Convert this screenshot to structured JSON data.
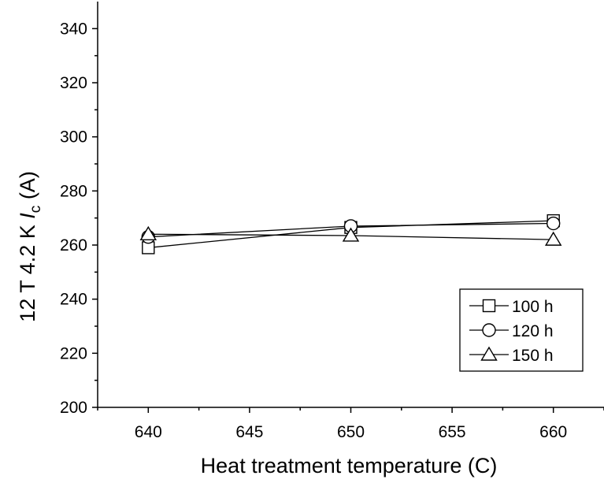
{
  "chart_data": {
    "type": "line",
    "title": "",
    "xlabel": "Heat treatment temperature (C)",
    "ylabel": {
      "prefix": "12 T 4.2 K ",
      "symbol": "I",
      "subscript": "c",
      "suffix": " (A)"
    },
    "xlim": [
      637.5,
      662.5
    ],
    "ylim": [
      200,
      350
    ],
    "xticks": [
      640,
      645,
      650,
      655,
      660
    ],
    "yticks": [
      200,
      220,
      240,
      260,
      280,
      300,
      320,
      340
    ],
    "grid": false,
    "legend_position": "bottom-right",
    "series": [
      {
        "name": "100 h",
        "marker": "square",
        "x": [
          640,
          650,
          660
        ],
        "y": [
          259,
          266.5,
          269
        ]
      },
      {
        "name": "120 h",
        "marker": "circle",
        "x": [
          640,
          650,
          660
        ],
        "y": [
          263,
          267,
          268
        ]
      },
      {
        "name": "150 h",
        "marker": "triangle",
        "x": [
          640,
          650,
          660
        ],
        "y": [
          264,
          263.5,
          262
        ]
      }
    ],
    "colors": {
      "line": "#000000",
      "marker_fill": "#ffffff",
      "background": "#ffffff"
    }
  }
}
